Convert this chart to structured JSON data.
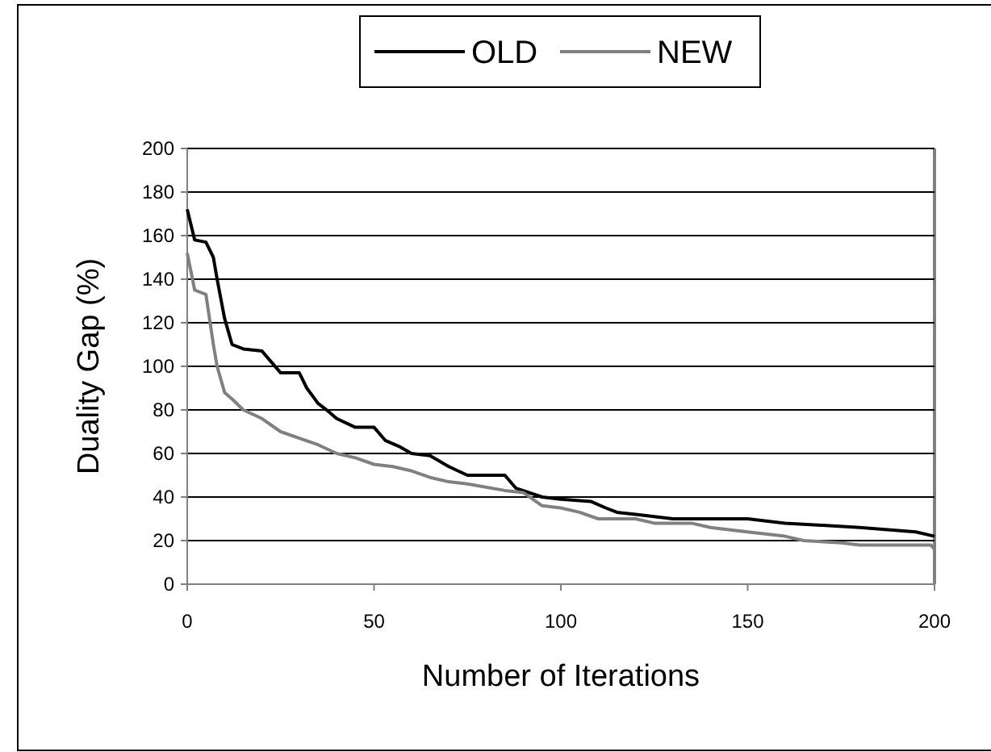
{
  "chart_data": {
    "type": "line",
    "xlabel": "Number of Iterations",
    "ylabel": "Duality Gap (%)",
    "xlim": [
      0,
      200
    ],
    "xticks": [
      0,
      50,
      100,
      150,
      200
    ],
    "ylim": [
      0,
      200
    ],
    "yticks": [
      0,
      20,
      40,
      60,
      80,
      100,
      120,
      140,
      160,
      180,
      200
    ],
    "grid": "y",
    "legend": "top",
    "line_style": "solid",
    "series": [
      {
        "name": "OLD",
        "color": "#000000",
        "x": [
          0,
          2,
          5,
          7,
          8,
          10,
          12,
          15,
          20,
          25,
          30,
          32,
          35,
          38,
          40,
          45,
          50,
          53,
          57,
          60,
          65,
          70,
          75,
          85,
          88,
          95,
          100,
          108,
          112,
          115,
          120,
          130,
          150,
          160,
          170,
          180,
          195,
          200
        ],
        "values": [
          172,
          158,
          157,
          150,
          140,
          122,
          110,
          108,
          107,
          97,
          97,
          90,
          83,
          79,
          76,
          72,
          72,
          66,
          63,
          60,
          59,
          54,
          50,
          50,
          44,
          40,
          39,
          38,
          35,
          33,
          32,
          30,
          30,
          28,
          27,
          26,
          24,
          22
        ]
      },
      {
        "name": "NEW",
        "color": "#808080",
        "x": [
          0,
          2,
          5,
          7,
          8,
          10,
          12,
          15,
          20,
          25,
          30,
          35,
          40,
          45,
          50,
          55,
          60,
          65,
          70,
          75,
          85,
          90,
          95,
          100,
          105,
          110,
          120,
          125,
          135,
          140,
          150,
          160,
          165,
          175,
          180,
          199,
          200
        ],
        "values": [
          152,
          135,
          133,
          110,
          100,
          88,
          85,
          80,
          76,
          70,
          67,
          64,
          60,
          58,
          55,
          54,
          52,
          49,
          47,
          46,
          43,
          42,
          36,
          35,
          33,
          30,
          30,
          28,
          28,
          26,
          24,
          22,
          20,
          19,
          18,
          18,
          16
        ]
      }
    ]
  }
}
